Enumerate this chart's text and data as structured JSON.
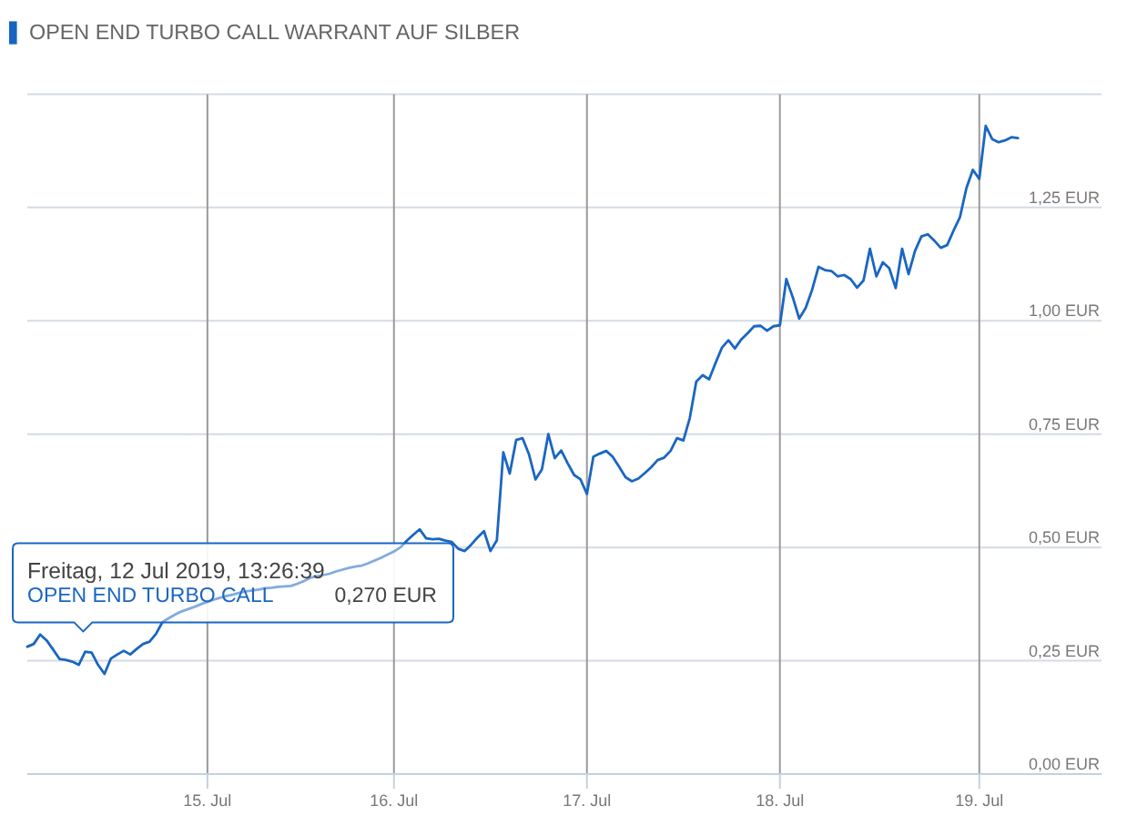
{
  "chart_data": {
    "type": "line",
    "title": "OPEN END TURBO CALL WARRANT AUF SILBER",
    "categories": [
      null,
      null,
      null,
      null,
      null,
      null,
      null,
      null,
      null,
      null,
      null,
      null,
      null,
      null,
      null,
      null,
      null,
      null,
      null,
      null,
      null,
      null,
      null,
      null,
      null,
      null,
      null,
      null,
      "15. Jul",
      null,
      null,
      null,
      null,
      null,
      null,
      null,
      null,
      null,
      null,
      null,
      null,
      null,
      null,
      null,
      null,
      null,
      null,
      null,
      null,
      null,
      null,
      null,
      null,
      null,
      null,
      null,
      null,
      "16. Jul",
      null,
      null,
      null,
      null,
      null,
      null,
      null,
      null,
      null,
      null,
      null,
      null,
      null,
      null,
      null,
      null,
      null,
      null,
      null,
      null,
      null,
      null,
      null,
      null,
      null,
      null,
      null,
      null,
      null,
      "17. Jul",
      null,
      null,
      null,
      null,
      null,
      null,
      null,
      null,
      null,
      null,
      null,
      null,
      null,
      null,
      null,
      null,
      null,
      null,
      null,
      null,
      null,
      null,
      null,
      null,
      null,
      null,
      null,
      null,
      null,
      "18. Jul",
      null,
      null,
      null,
      null,
      null,
      null,
      null,
      null,
      null,
      null,
      null,
      null,
      null,
      null,
      null,
      null,
      null,
      null,
      null,
      null,
      null,
      null,
      null,
      null,
      null,
      null,
      null,
      null,
      null,
      null,
      "19. Jul",
      null,
      null,
      null,
      null,
      null,
      null,
      null,
      null,
      null,
      null,
      null,
      null,
      null,
      null,
      null,
      null,
      null,
      null,
      null
    ],
    "series": [
      {
        "name": "OPEN END TURBO CALL",
        "color": "#1a66c2",
        "values": [
          0.281,
          0.287,
          0.308,
          0.295,
          0.275,
          0.254,
          0.252,
          0.248,
          0.241,
          0.27,
          0.268,
          0.241,
          0.221,
          0.255,
          0.264,
          0.272,
          0.264,
          0.276,
          0.287,
          0.292,
          0.309,
          0.335,
          0.344,
          0.352,
          0.359,
          0.364,
          0.369,
          0.375,
          0.38,
          0.385,
          0.389,
          0.393,
          0.396,
          0.4,
          0.403,
          0.405,
          0.407,
          0.41,
          0.411,
          0.413,
          0.414,
          0.415,
          0.42,
          0.426,
          0.433,
          0.436,
          0.439,
          0.442,
          0.447,
          0.451,
          0.455,
          0.458,
          0.46,
          0.465,
          0.471,
          0.477,
          0.484,
          0.491,
          0.5,
          0.515,
          0.528,
          0.54,
          0.52,
          0.518,
          0.519,
          0.515,
          0.512,
          0.497,
          0.492,
          0.506,
          0.522,
          0.536,
          0.492,
          0.516,
          0.71,
          0.663,
          0.737,
          0.741,
          0.705,
          0.65,
          0.672,
          0.75,
          0.697,
          0.714,
          0.686,
          0.66,
          0.65,
          0.618,
          0.7,
          0.707,
          0.713,
          0.7,
          0.678,
          0.655,
          0.646,
          0.652,
          0.664,
          0.677,
          0.693,
          0.698,
          0.713,
          0.741,
          0.736,
          0.786,
          0.866,
          0.88,
          0.871,
          0.907,
          0.941,
          0.957,
          0.939,
          0.959,
          0.973,
          0.988,
          0.989,
          0.978,
          0.988,
          0.99,
          1.092,
          1.052,
          1.005,
          1.028,
          1.068,
          1.119,
          1.112,
          1.11,
          1.098,
          1.101,
          1.092,
          1.073,
          1.089,
          1.159,
          1.098,
          1.129,
          1.116,
          1.072,
          1.159,
          1.103,
          1.154,
          1.186,
          1.191,
          1.177,
          1.161,
          1.167,
          1.199,
          1.229,
          1.293,
          1.333,
          1.313,
          1.43,
          1.401,
          1.394,
          1.398,
          1.405,
          1.403,
          null,
          null,
          null,
          null,
          null,
          null,
          null,
          null,
          null,
          null,
          null,
          null,
          null
        ]
      }
    ],
    "ylim": [
      0,
      1.5
    ],
    "yticks": [
      {
        "value": 0,
        "label": "0,00 EUR"
      },
      {
        "value": 0.25,
        "label": "0,25 EUR"
      },
      {
        "value": 0.5,
        "label": "0,50 EUR"
      },
      {
        "value": 0.75,
        "label": "0,75 EUR"
      },
      {
        "value": 1,
        "label": "1,00 EUR"
      },
      {
        "value": 1.25,
        "label": "1,25 EUR"
      },
      {
        "value": 1.5,
        "label": null
      }
    ],
    "grid": true,
    "annotations": [
      "Freitag, 12 Jul 2019, 13:26:39",
      "0,270 EUR"
    ]
  }
}
